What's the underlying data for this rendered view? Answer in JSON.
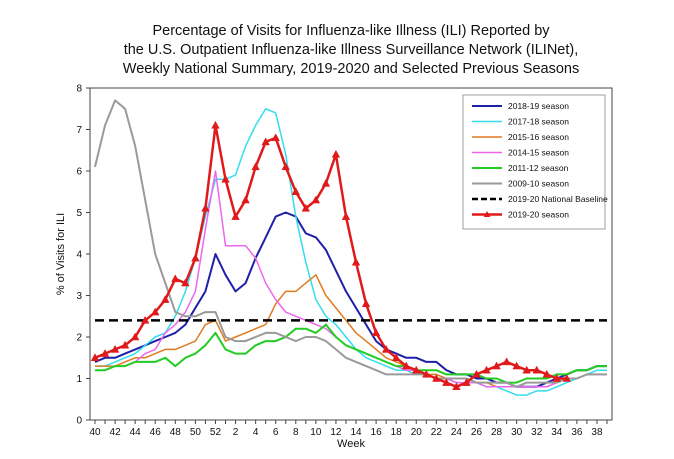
{
  "chart_data": {
    "type": "line",
    "title": [
      "Percentage of Visits for Influenza-like Illness (ILI) Reported by",
      "the U.S. Outpatient Influenza-like Illness Surveillance Network (ILINet),",
      "Weekly National Summary, 2019-2020 and Selected Previous Seasons"
    ],
    "xlabel": "Week",
    "ylabel": "% of Visits for ILI",
    "ylim": [
      0,
      8
    ],
    "yticks": [
      "0",
      "1",
      "2",
      "3",
      "4",
      "5",
      "6",
      "7",
      "8"
    ],
    "x": [
      40,
      41,
      42,
      43,
      44,
      45,
      46,
      47,
      48,
      49,
      50,
      51,
      52,
      1,
      2,
      3,
      4,
      5,
      6,
      7,
      8,
      9,
      10,
      11,
      12,
      13,
      14,
      15,
      16,
      17,
      18,
      19,
      20,
      21,
      22,
      23,
      24,
      25,
      26,
      27,
      28,
      29,
      30,
      31,
      32,
      33,
      34,
      35,
      36,
      37,
      38,
      39
    ],
    "xtick_labels": [
      "40",
      "42",
      "44",
      "46",
      "48",
      "50",
      "52",
      "2",
      "4",
      "6",
      "8",
      "10",
      "12",
      "14",
      "16",
      "18",
      "20",
      "22",
      "24",
      "26",
      "28",
      "30",
      "32",
      "34",
      "36",
      "38"
    ],
    "legend_position": "top-right",
    "series": [
      {
        "name": "2018-19 season",
        "color": "#1f1fa8",
        "width": 2,
        "marker": "none",
        "values": [
          1.4,
          1.5,
          1.5,
          1.6,
          1.7,
          1.8,
          1.9,
          2.0,
          2.1,
          2.3,
          2.7,
          3.1,
          4.0,
          3.5,
          3.1,
          3.3,
          3.9,
          4.4,
          4.9,
          5.0,
          4.9,
          4.5,
          4.4,
          4.1,
          3.6,
          3.1,
          2.7,
          2.3,
          1.9,
          1.7,
          1.6,
          1.5,
          1.5,
          1.4,
          1.4,
          1.2,
          1.1,
          1.1,
          1.0,
          1.0,
          0.9,
          0.9,
          0.8,
          0.8,
          0.8,
          0.9,
          1.0,
          1.1,
          1.2,
          1.2,
          1.3,
          1.3
        ]
      },
      {
        "name": "2017-18 season",
        "color": "#33ddee",
        "width": 1.5,
        "marker": "none",
        "values": [
          1.3,
          1.3,
          1.4,
          1.5,
          1.6,
          1.8,
          2.0,
          2.1,
          2.5,
          3.1,
          3.9,
          4.9,
          5.8,
          5.8,
          5.9,
          6.6,
          7.1,
          7.5,
          7.4,
          6.4,
          4.9,
          3.8,
          2.9,
          2.5,
          2.3,
          2.0,
          1.7,
          1.5,
          1.4,
          1.3,
          1.2,
          1.2,
          1.1,
          1.1,
          1.0,
          1.0,
          0.9,
          0.9,
          0.9,
          0.8,
          0.8,
          0.7,
          0.6,
          0.6,
          0.7,
          0.7,
          0.8,
          0.9,
          1.0,
          1.1,
          1.2,
          1.2
        ]
      },
      {
        "name": "2015-16 season",
        "color": "#e07b20",
        "width": 1.5,
        "marker": "none",
        "values": [
          1.3,
          1.3,
          1.3,
          1.4,
          1.5,
          1.5,
          1.6,
          1.7,
          1.7,
          1.8,
          1.9,
          2.3,
          2.4,
          1.9,
          2.0,
          2.1,
          2.2,
          2.3,
          2.8,
          3.1,
          3.1,
          3.3,
          3.5,
          3.0,
          2.7,
          2.4,
          2.1,
          1.9,
          1.7,
          1.5,
          1.4,
          1.3,
          1.2,
          1.1,
          1.1,
          1.0,
          1.0,
          1.0,
          0.9,
          0.9,
          0.8,
          0.8,
          0.8,
          0.8,
          0.8,
          0.8,
          0.9,
          1.0,
          1.0,
          1.1,
          1.1,
          1.1
        ]
      },
      {
        "name": "2014-15 season",
        "color": "#ee66ee",
        "width": 1.5,
        "marker": "none",
        "values": [
          1.2,
          1.2,
          1.3,
          1.3,
          1.4,
          1.6,
          1.7,
          2.1,
          2.3,
          2.6,
          3.1,
          4.6,
          6.0,
          4.2,
          4.2,
          4.2,
          3.9,
          3.3,
          2.9,
          2.6,
          2.5,
          2.4,
          2.3,
          2.2,
          2.0,
          1.8,
          1.7,
          1.6,
          1.5,
          1.4,
          1.3,
          1.2,
          1.2,
          1.1,
          1.0,
          1.0,
          0.9,
          0.9,
          0.9,
          0.8,
          0.8,
          0.8,
          0.8,
          0.8,
          0.8,
          0.8,
          0.9,
          1.0,
          1.0,
          1.1,
          1.1,
          1.1
        ]
      },
      {
        "name": "2011-12 season",
        "color": "#22cc22",
        "width": 2,
        "marker": "none",
        "values": [
          1.2,
          1.2,
          1.3,
          1.3,
          1.4,
          1.4,
          1.4,
          1.5,
          1.3,
          1.5,
          1.6,
          1.8,
          2.1,
          1.7,
          1.6,
          1.6,
          1.8,
          1.9,
          1.9,
          2.0,
          2.2,
          2.2,
          2.1,
          2.3,
          2.0,
          1.8,
          1.7,
          1.6,
          1.5,
          1.4,
          1.3,
          1.3,
          1.2,
          1.2,
          1.2,
          1.1,
          1.1,
          1.1,
          1.1,
          1.0,
          1.0,
          0.9,
          0.9,
          1.0,
          1.0,
          1.0,
          1.1,
          1.1,
          1.2,
          1.2,
          1.3,
          1.3
        ]
      },
      {
        "name": "2009-10 season",
        "color": "#9a9a9a",
        "width": 2,
        "marker": "none",
        "values": [
          6.1,
          7.1,
          7.7,
          7.5,
          6.6,
          5.3,
          4.0,
          3.3,
          2.6,
          2.5,
          2.5,
          2.6,
          2.6,
          2.0,
          1.9,
          1.9,
          2.0,
          2.1,
          2.1,
          2.0,
          1.9,
          2.0,
          2.0,
          1.9,
          1.7,
          1.5,
          1.4,
          1.3,
          1.2,
          1.1,
          1.1,
          1.1,
          1.1,
          1.1,
          1.0,
          1.0,
          1.0,
          1.0,
          0.9,
          0.9,
          0.9,
          0.9,
          0.8,
          0.9,
          0.9,
          0.9,
          0.9,
          1.0,
          1.0,
          1.1,
          1.1,
          1.1
        ]
      },
      {
        "name": "2019-20 National Baseline",
        "color": "#000000",
        "width": 2.5,
        "marker": "none",
        "dashed": true,
        "values": [
          2.4,
          2.4,
          2.4,
          2.4,
          2.4,
          2.4,
          2.4,
          2.4,
          2.4,
          2.4,
          2.4,
          2.4,
          2.4,
          2.4,
          2.4,
          2.4,
          2.4,
          2.4,
          2.4,
          2.4,
          2.4,
          2.4,
          2.4,
          2.4,
          2.4,
          2.4,
          2.4,
          2.4,
          2.4,
          2.4,
          2.4,
          2.4,
          2.4,
          2.4,
          2.4,
          2.4,
          2.4,
          2.4,
          2.4,
          2.4,
          2.4,
          2.4,
          2.4,
          2.4,
          2.4,
          2.4,
          2.4,
          2.4,
          2.4,
          2.4,
          2.4,
          2.4
        ]
      },
      {
        "name": "2019-20 season",
        "color": "#e01a1a",
        "width": 2.5,
        "marker": "triangle",
        "values": [
          1.5,
          1.6,
          1.7,
          1.8,
          2.0,
          2.4,
          2.6,
          2.9,
          3.4,
          3.3,
          3.9,
          5.1,
          7.1,
          5.8,
          4.9,
          5.3,
          6.1,
          6.7,
          6.8,
          6.1,
          5.5,
          5.1,
          5.3,
          5.7,
          6.4,
          4.9,
          3.8,
          2.8,
          2.1,
          1.7,
          1.5,
          1.3,
          1.2,
          1.1,
          1.0,
          0.9,
          0.8,
          0.9,
          1.1,
          1.2,
          1.3,
          1.4,
          1.3,
          1.2,
          1.2,
          1.1,
          1.0,
          1.0,
          null,
          null,
          null,
          null
        ]
      }
    ]
  }
}
